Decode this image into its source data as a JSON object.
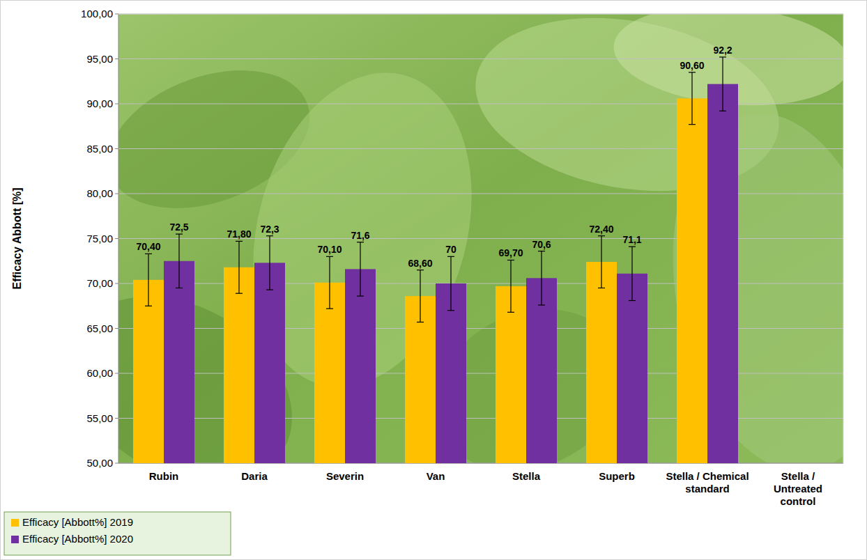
{
  "chart_data": {
    "type": "bar",
    "y_label": "Efficacy Abbott [%]",
    "categories": [
      "Rubin",
      "Daria",
      "Severin",
      "Van",
      "Stella",
      "Superb",
      "Stella / Chemical standard",
      "Stella / Untreated control"
    ],
    "series": [
      {
        "name": "Efficacy [Abbott%] 2019",
        "color": "#ffc000",
        "values": [
          70.4,
          71.8,
          70.1,
          68.6,
          69.7,
          72.4,
          90.6,
          null
        ],
        "value_labels": [
          "70,40",
          "71,80",
          "70,10",
          "68,60",
          "69,70",
          "72,40",
          "90,60",
          null
        ],
        "errors": [
          2.9,
          2.9,
          2.9,
          2.9,
          2.9,
          2.9,
          2.9,
          null
        ]
      },
      {
        "name": "Efficacy [Abbott%] 2020",
        "color": "#7030a0",
        "values": [
          72.5,
          72.3,
          71.6,
          70,
          70.6,
          71.1,
          92.2,
          null
        ],
        "value_labels": [
          "72,5",
          "72,3",
          "71,6",
          "70",
          "70,6",
          "71,1",
          "92,2",
          null
        ],
        "errors": [
          3.0,
          3.0,
          3.0,
          3.0,
          3.0,
          3.0,
          3.0,
          null
        ]
      }
    ],
    "ylim": [
      50,
      100
    ],
    "yticks": [
      {
        "value": 50,
        "label": "50,00"
      },
      {
        "value": 55,
        "label": "55,00"
      },
      {
        "value": 60,
        "label": "60,00"
      },
      {
        "value": 65,
        "label": "65,00"
      },
      {
        "value": 70,
        "label": "70,00"
      },
      {
        "value": 75,
        "label": "75,00"
      },
      {
        "value": 80,
        "label": "80,00"
      },
      {
        "value": 85,
        "label": "85,00"
      },
      {
        "value": 90,
        "label": "90,00"
      },
      {
        "value": 95,
        "label": "95,00"
      },
      {
        "value": 100,
        "label": "100,00"
      }
    ],
    "grid": true,
    "data_labels": true,
    "legend": "bottom-left"
  }
}
